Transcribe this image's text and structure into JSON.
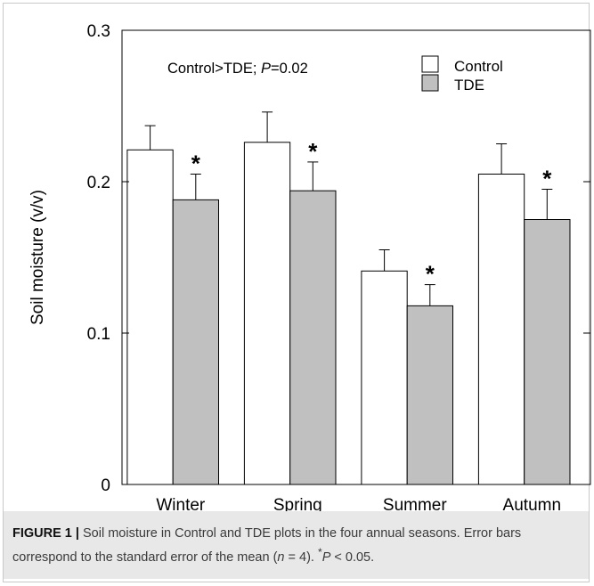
{
  "chart_data": {
    "type": "bar",
    "categories": [
      "Winter",
      "Spring",
      "Summer",
      "Autumn"
    ],
    "series": [
      {
        "name": "Control",
        "values": [
          0.221,
          0.226,
          0.141,
          0.205
        ],
        "errors": [
          0.016,
          0.02,
          0.014,
          0.02
        ],
        "color": "#ffffff"
      },
      {
        "name": "TDE",
        "values": [
          0.188,
          0.194,
          0.118,
          0.175
        ],
        "errors": [
          0.017,
          0.019,
          0.014,
          0.02
        ],
        "color": "#c0c0c0"
      }
    ],
    "significance_marker": "*",
    "significant": [
      true,
      true,
      true,
      true
    ],
    "ylabel": "Soil moisture (v/v)",
    "xlabel": "",
    "ylim": [
      0,
      0.3
    ],
    "yticks": [
      "0",
      "0.1",
      "0.2",
      "0.3"
    ],
    "annotation": {
      "prefix": "Control>TDE; ",
      "p_symbol": "P",
      "p_value": "=0.02"
    },
    "legend_position": "top-right",
    "grid": false
  },
  "caption": {
    "label": "FIGURE 1 |",
    "text1": "Soil moisture in Control and TDE plots in the four annual seasons.",
    "text2": "Error bars correspond to the standard error of the mean (",
    "n_symbol": "n",
    "n_value": " = 4). ",
    "sup": "*",
    "p_symbol": "P",
    "p_value": " < 0.05."
  }
}
